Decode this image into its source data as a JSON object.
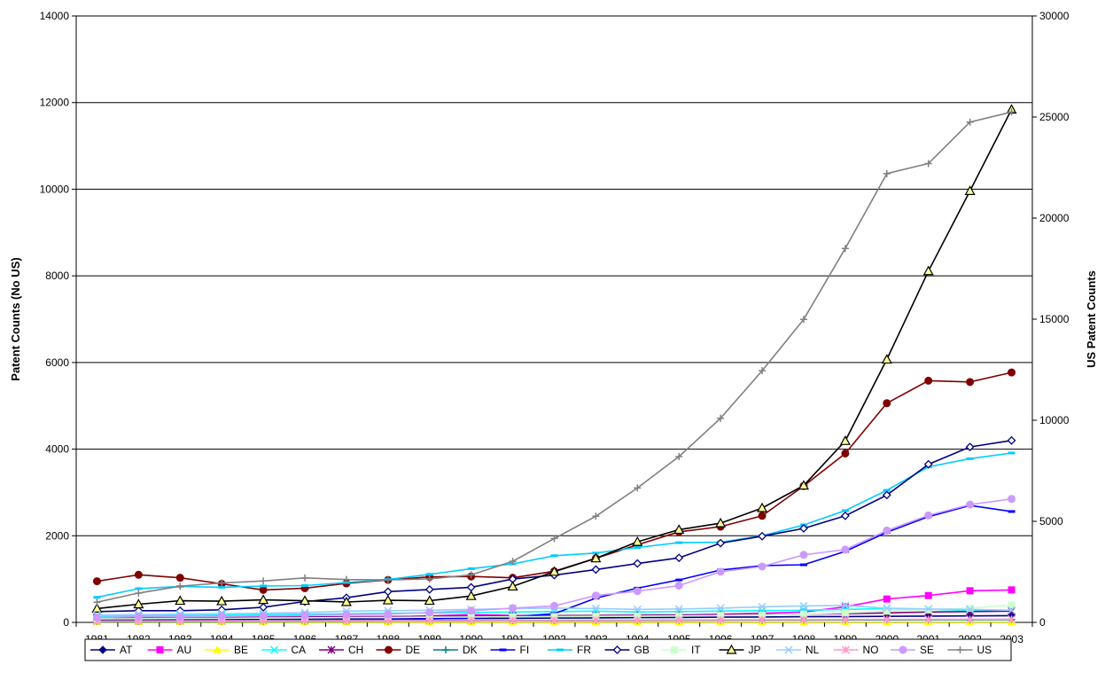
{
  "chart_data": {
    "type": "line",
    "title": "",
    "ylabel": "Patent Counts (No US)",
    "y2label": "US Patent Counts",
    "x": [
      "1981",
      "1982",
      "1983",
      "1984",
      "1985",
      "1986",
      "1987",
      "1988",
      "1989",
      "1990",
      "1991",
      "1992",
      "1993",
      "1994",
      "1995",
      "1996",
      "1997",
      "1998",
      "1999",
      "2000",
      "2001",
      "2002",
      "2003"
    ],
    "ylim": [
      0,
      14000
    ],
    "y2lim": [
      0,
      30000
    ],
    "yticks": [
      "0",
      "2000",
      "4000",
      "6000",
      "8000",
      "10000",
      "12000",
      "14000"
    ],
    "y2ticks": [
      "0",
      "5000",
      "10000",
      "15000",
      "20000",
      "25000",
      "30000"
    ],
    "grid": true,
    "legend_position": "bottom",
    "series": [
      {
        "name": "AT",
        "color": "#000080",
        "marker": "diamond",
        "axis": "left",
        "values": [
          60,
          60,
          65,
          70,
          70,
          75,
          80,
          80,
          85,
          90,
          95,
          100,
          105,
          110,
          115,
          120,
          125,
          130,
          135,
          140,
          145,
          150,
          155
        ]
      },
      {
        "name": "AU",
        "color": "#ff00ff",
        "marker": "square",
        "axis": "left",
        "values": [
          90,
          95,
          100,
          105,
          110,
          115,
          120,
          125,
          150,
          180,
          160,
          150,
          140,
          155,
          170,
          190,
          210,
          240,
          360,
          540,
          620,
          730,
          750
        ]
      },
      {
        "name": "BE",
        "color": "#ffff00",
        "marker": "triangle",
        "axis": "left",
        "values": [
          10,
          10,
          10,
          10,
          10,
          10,
          10,
          10,
          10,
          10,
          10,
          10,
          10,
          10,
          10,
          10,
          10,
          10,
          10,
          10,
          10,
          10,
          10
        ]
      },
      {
        "name": "CA",
        "color": "#00ffff",
        "marker": "x",
        "axis": "left",
        "values": [
          140,
          150,
          160,
          170,
          180,
          190,
          200,
          210,
          220,
          230,
          240,
          250,
          260,
          240,
          250,
          260,
          270,
          280,
          300,
          320,
          300,
          280,
          270
        ]
      },
      {
        "name": "CH",
        "color": "#800080",
        "marker": "star",
        "axis": "left",
        "values": [
          100,
          105,
          110,
          115,
          120,
          125,
          130,
          135,
          140,
          145,
          150,
          155,
          160,
          165,
          170,
          175,
          180,
          190,
          200,
          220,
          240,
          250,
          260
        ]
      },
      {
        "name": "DE",
        "color": "#800000",
        "marker": "circle",
        "axis": "left",
        "values": [
          950,
          1100,
          1030,
          890,
          750,
          790,
          900,
          980,
          1050,
          1060,
          1030,
          1180,
          1480,
          1790,
          2090,
          2210,
          2460,
          3150,
          3900,
          5060,
          5580,
          5550,
          5770
        ]
      },
      {
        "name": "DK",
        "color": "#008080",
        "marker": "plus",
        "axis": "left",
        "values": [
          20,
          22,
          24,
          26,
          28,
          30,
          32,
          34,
          36,
          38,
          40,
          42,
          44,
          46,
          48,
          50,
          52,
          54,
          56,
          58,
          60,
          62,
          64
        ]
      },
      {
        "name": "FI",
        "color": "#0000ff",
        "marker": "dash",
        "axis": "left",
        "values": [
          30,
          35,
          40,
          45,
          50,
          55,
          60,
          70,
          80,
          100,
          130,
          200,
          560,
          790,
          980,
          1210,
          1310,
          1330,
          1640,
          2080,
          2440,
          2700,
          2560
        ]
      },
      {
        "name": "FR",
        "color": "#00ccff",
        "marker": "dash",
        "axis": "left",
        "values": [
          580,
          780,
          830,
          810,
          840,
          850,
          920,
          990,
          1110,
          1240,
          1350,
          1540,
          1600,
          1730,
          1840,
          1850,
          2000,
          2250,
          2580,
          3050,
          3590,
          3780,
          3910
        ]
      },
      {
        "name": "GB",
        "color": "#000080",
        "marker": "diamond-open",
        "axis": "left",
        "values": [
          250,
          270,
          270,
          290,
          350,
          480,
          570,
          710,
          760,
          810,
          1000,
          1090,
          1220,
          1360,
          1490,
          1830,
          1990,
          2170,
          2460,
          2940,
          3650,
          4050,
          4200
        ]
      },
      {
        "name": "IT",
        "color": "#ccffcc",
        "marker": "square",
        "axis": "left",
        "values": [
          80,
          85,
          90,
          95,
          100,
          105,
          110,
          115,
          120,
          125,
          130,
          135,
          140,
          145,
          150,
          160,
          170,
          190,
          220,
          260,
          290,
          330,
          400
        ]
      },
      {
        "name": "JP",
        "color": "#000000",
        "marker": "triangle-open",
        "axis": "left",
        "values": [
          320,
          420,
          500,
          490,
          520,
          500,
          470,
          510,
          500,
          610,
          830,
          1170,
          1480,
          1860,
          2140,
          2290,
          2640,
          3160,
          4190,
          6070,
          8110,
          9960,
          11840
        ]
      },
      {
        "name": "NL",
        "color": "#99ccff",
        "marker": "x",
        "axis": "left",
        "values": [
          170,
          180,
          190,
          200,
          210,
          230,
          260,
          270,
          280,
          300,
          320,
          330,
          320,
          300,
          310,
          330,
          360,
          380,
          390,
          330,
          310,
          300,
          280
        ]
      },
      {
        "name": "NO",
        "color": "#ff99cc",
        "marker": "star",
        "axis": "left",
        "values": [
          30,
          32,
          34,
          36,
          38,
          40,
          42,
          44,
          46,
          48,
          50,
          52,
          54,
          56,
          58,
          60,
          62,
          64,
          66,
          68,
          70,
          72,
          74
        ]
      },
      {
        "name": "SE",
        "color": "#cc99ff",
        "marker": "circle",
        "axis": "left",
        "values": [
          110,
          130,
          130,
          140,
          150,
          160,
          180,
          190,
          230,
          270,
          330,
          380,
          620,
          720,
          850,
          1170,
          1290,
          1560,
          1680,
          2120,
          2470,
          2720,
          2850
        ]
      },
      {
        "name": "US",
        "color": "#808080",
        "marker": "plus",
        "axis": "right",
        "values": [
          1000,
          1450,
          1790,
          1950,
          2050,
          2200,
          2120,
          2100,
          2150,
          2350,
          3020,
          4150,
          5250,
          6650,
          8200,
          10100,
          12450,
          14990,
          18500,
          22200,
          22700,
          24750,
          25250
        ]
      }
    ]
  }
}
